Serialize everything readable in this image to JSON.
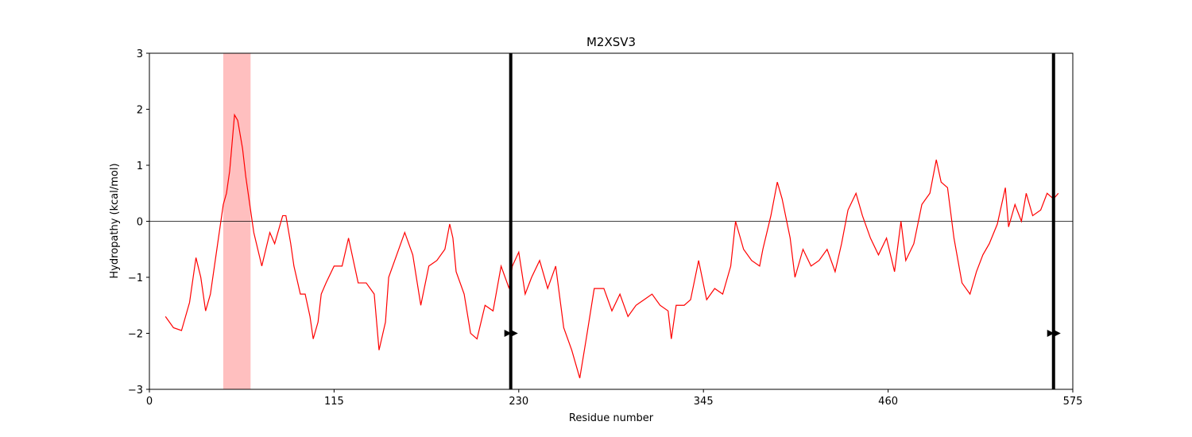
{
  "chart_data": {
    "type": "line",
    "title": "M2XSV3",
    "x_label": "Residue number",
    "y_label": "Hydropathy (kcal/mol)",
    "x": [
      10,
      15,
      20,
      25,
      29,
      32,
      35,
      38,
      42,
      46,
      48,
      50,
      53,
      55,
      58,
      60,
      63,
      65,
      70,
      75,
      78,
      83,
      85,
      88,
      90,
      94,
      97,
      100,
      102,
      105,
      107,
      110,
      115,
      120,
      124,
      130,
      135,
      140,
      143,
      147,
      149,
      154,
      159,
      164,
      169,
      174,
      179,
      184,
      187,
      189,
      191,
      196,
      200,
      204,
      209,
      214,
      219,
      224,
      226,
      230,
      234,
      238,
      243,
      248,
      253,
      258,
      263,
      268,
      272,
      277,
      283,
      288,
      293,
      298,
      303,
      308,
      313,
      318,
      323,
      325,
      328,
      333,
      337,
      342,
      347,
      352,
      357,
      362,
      365,
      370,
      375,
      380,
      382,
      387,
      391,
      394,
      399,
      402,
      407,
      412,
      417,
      422,
      427,
      431,
      435,
      440,
      444,
      449,
      454,
      459,
      464,
      468,
      471,
      476,
      481,
      486,
      490,
      493,
      497,
      501,
      506,
      511,
      515,
      519,
      523,
      528,
      533,
      535,
      539,
      543,
      546,
      550,
      555,
      559,
      563,
      566
    ],
    "series": [
      {
        "name": "Hydropathy",
        "color": "#ff0000",
        "values": [
          -1.7,
          -1.9,
          -1.95,
          -1.45,
          -0.65,
          -1.0,
          -1.6,
          -1.3,
          -0.5,
          0.3,
          0.5,
          0.9,
          1.9,
          1.8,
          1.3,
          0.8,
          0.2,
          -0.2,
          -0.8,
          -0.2,
          -0.4,
          0.1,
          0.1,
          -0.4,
          -0.8,
          -1.3,
          -1.3,
          -1.7,
          -2.1,
          -1.8,
          -1.3,
          -1.1,
          -0.8,
          -0.8,
          -0.3,
          -1.1,
          -1.1,
          -1.3,
          -2.3,
          -1.8,
          -1.0,
          -0.6,
          -0.2,
          -0.6,
          -1.5,
          -0.8,
          -0.7,
          -0.5,
          -0.05,
          -0.3,
          -0.9,
          -1.3,
          -2.0,
          -2.1,
          -1.5,
          -1.6,
          -0.8,
          -1.2,
          -0.8,
          -0.55,
          -1.3,
          -1.0,
          -0.7,
          -1.2,
          -0.8,
          -1.9,
          -2.3,
          -2.8,
          -2.1,
          -1.2,
          -1.2,
          -1.6,
          -1.3,
          -1.7,
          -1.5,
          -1.4,
          -1.3,
          -1.5,
          -1.6,
          -2.1,
          -1.5,
          -1.5,
          -1.4,
          -0.7,
          -1.4,
          -1.2,
          -1.3,
          -0.8,
          0.0,
          -0.5,
          -0.7,
          -0.8,
          -0.5,
          0.1,
          0.7,
          0.4,
          -0.3,
          -1.0,
          -0.5,
          -0.8,
          -0.7,
          -0.5,
          -0.9,
          -0.4,
          0.2,
          0.5,
          0.1,
          -0.3,
          -0.6,
          -0.3,
          -0.9,
          0.0,
          -0.7,
          -0.4,
          0.3,
          0.5,
          1.1,
          0.7,
          0.6,
          -0.3,
          -1.1,
          -1.3,
          -0.9,
          -0.6,
          -0.4,
          -0.05,
          0.6,
          -0.1,
          0.3,
          0.0,
          0.5,
          0.1,
          0.2,
          0.5,
          0.4,
          0.5
        ]
      }
    ],
    "xlim": [
      0,
      575
    ],
    "xticks": [
      0,
      115,
      230,
      345,
      460,
      575
    ],
    "ylim": [
      -3,
      3
    ],
    "yticks": [
      {
        "value": -3,
        "label": "−3"
      },
      {
        "value": -2,
        "label": "−2"
      },
      {
        "value": -1,
        "label": "−1"
      },
      0,
      1,
      2,
      3
    ],
    "hline": 0,
    "span": {
      "start": 46,
      "end": 63,
      "color": "#ffbfbf"
    },
    "vlines": [
      225,
      563
    ],
    "markers": {
      "x": [
        223,
        227,
        561,
        565
      ],
      "y": [
        -2,
        -2,
        -2,
        -2
      ]
    }
  }
}
